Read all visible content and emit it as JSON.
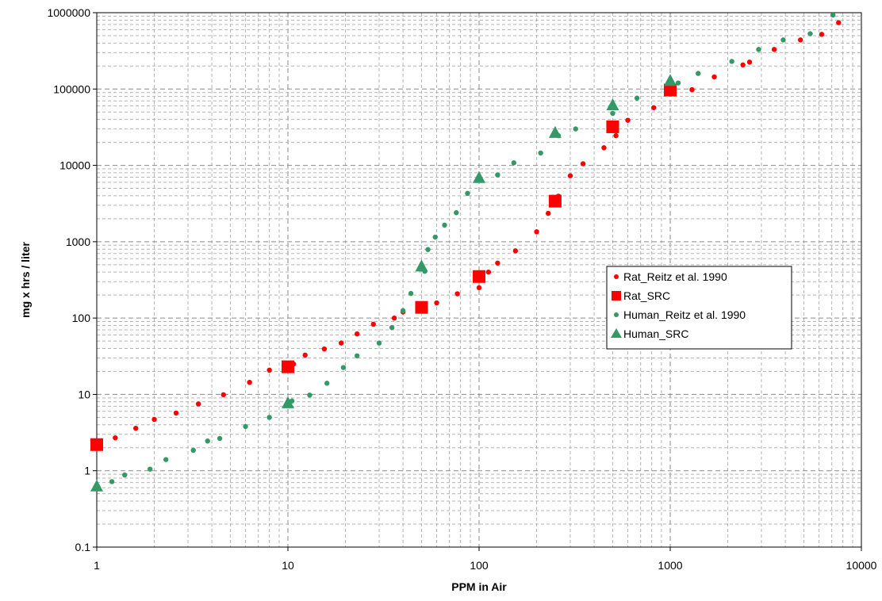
{
  "chart_data": {
    "type": "scatter",
    "x_scale": "log",
    "y_scale": "log",
    "xlabel": "PPM in Air",
    "ylabel": "mg x hrs / liter",
    "xlim": [
      1,
      10000
    ],
    "ylim": [
      0.1,
      1000000
    ],
    "x_ticks": [
      "1",
      "10",
      "100",
      "1000",
      "10000"
    ],
    "y_ticks": [
      "0.1",
      "1",
      "10",
      "100",
      "1000",
      "10000",
      "100000",
      "1000000"
    ],
    "grid": "major and minor, dashed",
    "legend_position": "right-center",
    "series": [
      {
        "name": "Rat_Reitz et al. 1990",
        "marker": "small-circle",
        "color": "#FF0000",
        "points": [
          [
            1.25,
            2.7
          ],
          [
            1.6,
            3.6
          ],
          [
            2,
            4.7
          ],
          [
            2.6,
            5.7
          ],
          [
            3.4,
            7.5
          ],
          [
            4.6,
            9.9
          ],
          [
            6.3,
            14.4
          ],
          [
            8,
            20.8
          ],
          [
            10.7,
            25
          ],
          [
            12.3,
            32.7
          ],
          [
            15.5,
            39.4
          ],
          [
            19,
            47.1
          ],
          [
            23,
            62
          ],
          [
            28,
            83
          ],
          [
            36,
            100
          ],
          [
            40,
            120
          ],
          [
            60,
            158
          ],
          [
            77,
            208
          ],
          [
            100,
            250
          ],
          [
            112,
            400
          ],
          [
            125,
            525
          ],
          [
            155,
            760
          ],
          [
            200,
            1350
          ],
          [
            230,
            2350
          ],
          [
            260,
            3950
          ],
          [
            300,
            7300
          ],
          [
            350,
            10500
          ],
          [
            450,
            17000
          ],
          [
            520,
            24500
          ],
          [
            600,
            39000
          ],
          [
            820,
            57000
          ],
          [
            1300,
            98000
          ],
          [
            1700,
            144000
          ],
          [
            2400,
            207000
          ],
          [
            2600,
            225000
          ],
          [
            3500,
            330000
          ],
          [
            4800,
            440000
          ],
          [
            6200,
            520000
          ],
          [
            7600,
            740000
          ]
        ]
      },
      {
        "name": "Rat_SRC",
        "marker": "square",
        "color": "#FF0000",
        "points": [
          [
            1,
            2.2
          ],
          [
            10,
            23
          ],
          [
            50,
            138
          ],
          [
            100,
            350
          ],
          [
            250,
            3400
          ],
          [
            500,
            32000
          ],
          [
            1000,
            97000
          ]
        ]
      },
      {
        "name": "Human_Reitz et al. 1990",
        "marker": "small-circle",
        "color": "#339966",
        "points": [
          [
            1.2,
            0.72
          ],
          [
            1.4,
            0.88
          ],
          [
            1.9,
            1.05
          ],
          [
            2.3,
            1.4
          ],
          [
            3.2,
            1.85
          ],
          [
            3.8,
            2.45
          ],
          [
            4.4,
            2.65
          ],
          [
            6,
            3.8
          ],
          [
            8,
            5
          ],
          [
            10.5,
            8.2
          ],
          [
            13,
            9.8
          ],
          [
            16,
            14
          ],
          [
            19.5,
            22.5
          ],
          [
            23,
            32
          ],
          [
            30,
            47
          ],
          [
            35,
            75
          ],
          [
            40,
            125
          ],
          [
            44,
            210
          ],
          [
            52,
            410
          ],
          [
            54,
            790
          ],
          [
            59,
            1150
          ],
          [
            66,
            1650
          ],
          [
            76,
            2400
          ],
          [
            87,
            4300
          ],
          [
            125,
            7500
          ],
          [
            152,
            10800
          ],
          [
            210,
            14500
          ],
          [
            260,
            24500
          ],
          [
            320,
            30000
          ],
          [
            500,
            48000
          ],
          [
            670,
            76000
          ],
          [
            1100,
            120000
          ],
          [
            1400,
            160000
          ],
          [
            2100,
            230000
          ],
          [
            2900,
            330000
          ],
          [
            3900,
            440000
          ],
          [
            5400,
            530000
          ],
          [
            7100,
            930000
          ]
        ]
      },
      {
        "name": "Human_SRC",
        "marker": "triangle",
        "color": "#339966",
        "points": [
          [
            1,
            0.62
          ],
          [
            10,
            7.6
          ],
          [
            50,
            470
          ],
          [
            100,
            6800
          ],
          [
            250,
            26500
          ],
          [
            500,
            61000
          ],
          [
            1000,
            127000
          ]
        ]
      }
    ]
  }
}
